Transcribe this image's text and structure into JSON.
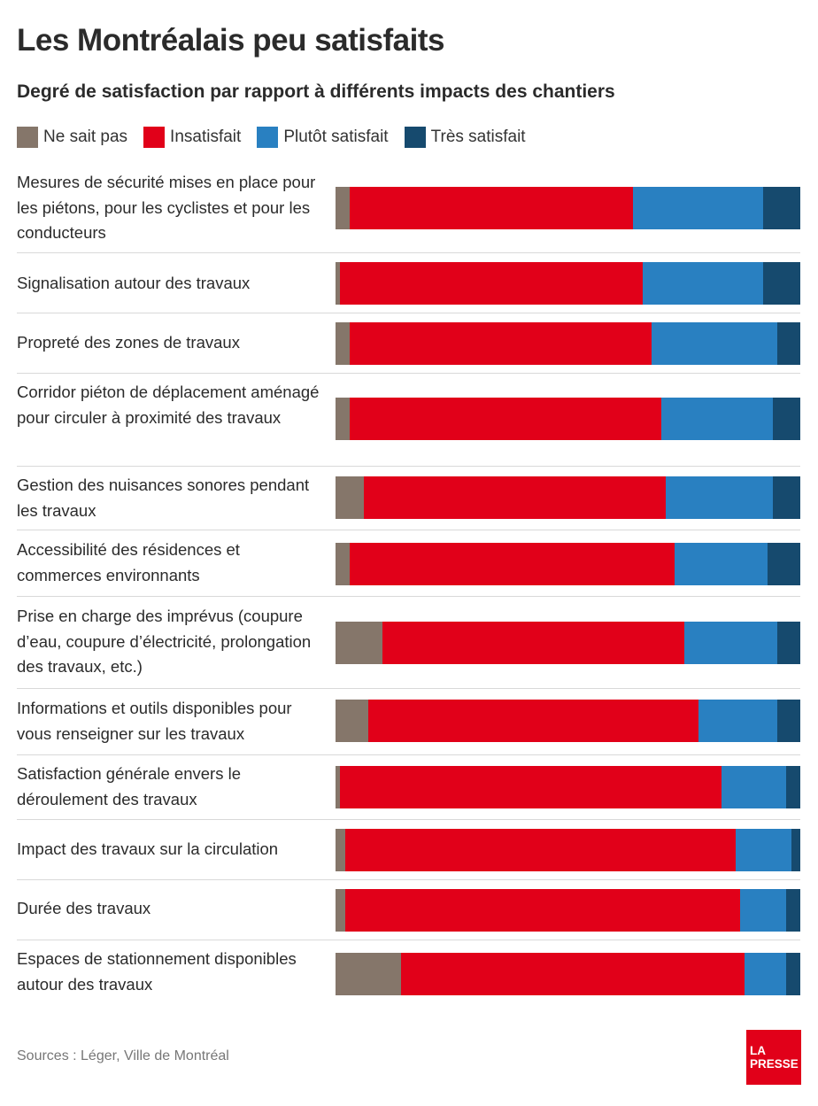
{
  "header": {
    "title": "Les Montréalais peu satisfaits",
    "subtitle": "Degré de satisfaction par rapport à différents impacts des chantiers"
  },
  "legend": [
    {
      "name": "Ne sait pas",
      "color": "#85766a"
    },
    {
      "name": "Insatisfait",
      "color": "#e10019"
    },
    {
      "name": "Plutôt satisfait",
      "color": "#2980c1"
    },
    {
      "name": "Très satisfait",
      "color": "#164a6e"
    }
  ],
  "chart_data": {
    "type": "bar",
    "orientation": "horizontal",
    "stacked": true,
    "unit": "%",
    "categories": [
      "Mesures de sécurité mises en place pour les piétons, pour les cyclistes et pour les conducteurs",
      "Signalisation autour des travaux",
      "Propreté des zones de travaux",
      "Corridor piéton de déplacement aménagé pour circuler à proximité des travaux",
      "Gestion des nuisances sonores pendant les travaux",
      "Accessibilité des résidences et commerces environnants",
      "Prise en charge des imprévus (coupure d’eau, coupure d’électricité, prolongation des travaux, etc.)",
      "Informations et outils disponibles pour vous renseigner sur les travaux",
      "Satisfaction générale envers le déroulement des travaux",
      "Impact des travaux sur la circulation",
      "Durée des travaux",
      "Espaces de stationnement disponibles autour des travaux"
    ],
    "series": [
      {
        "name": "Ne sait pas",
        "values": [
          3,
          1,
          3,
          3,
          6,
          3,
          10,
          7,
          1,
          2,
          2,
          14
        ]
      },
      {
        "name": "Insatisfait",
        "values": [
          61,
          65,
          65,
          67,
          65,
          70,
          65,
          71,
          82,
          84,
          85,
          74
        ]
      },
      {
        "name": "Plutôt satisfait",
        "values": [
          28,
          26,
          27,
          24,
          23,
          20,
          20,
          17,
          14,
          12,
          10,
          9
        ]
      },
      {
        "name": "Très satisfait",
        "values": [
          8,
          8,
          5,
          6,
          6,
          7,
          5,
          5,
          3,
          2,
          3,
          3
        ]
      }
    ],
    "xlim": [
      0,
      100
    ],
    "legend_position": "top-left"
  },
  "footer": {
    "source": "Sources : Léger, Ville de Montréal",
    "logo_line1": "LA",
    "logo_line2": "PRESSE"
  }
}
